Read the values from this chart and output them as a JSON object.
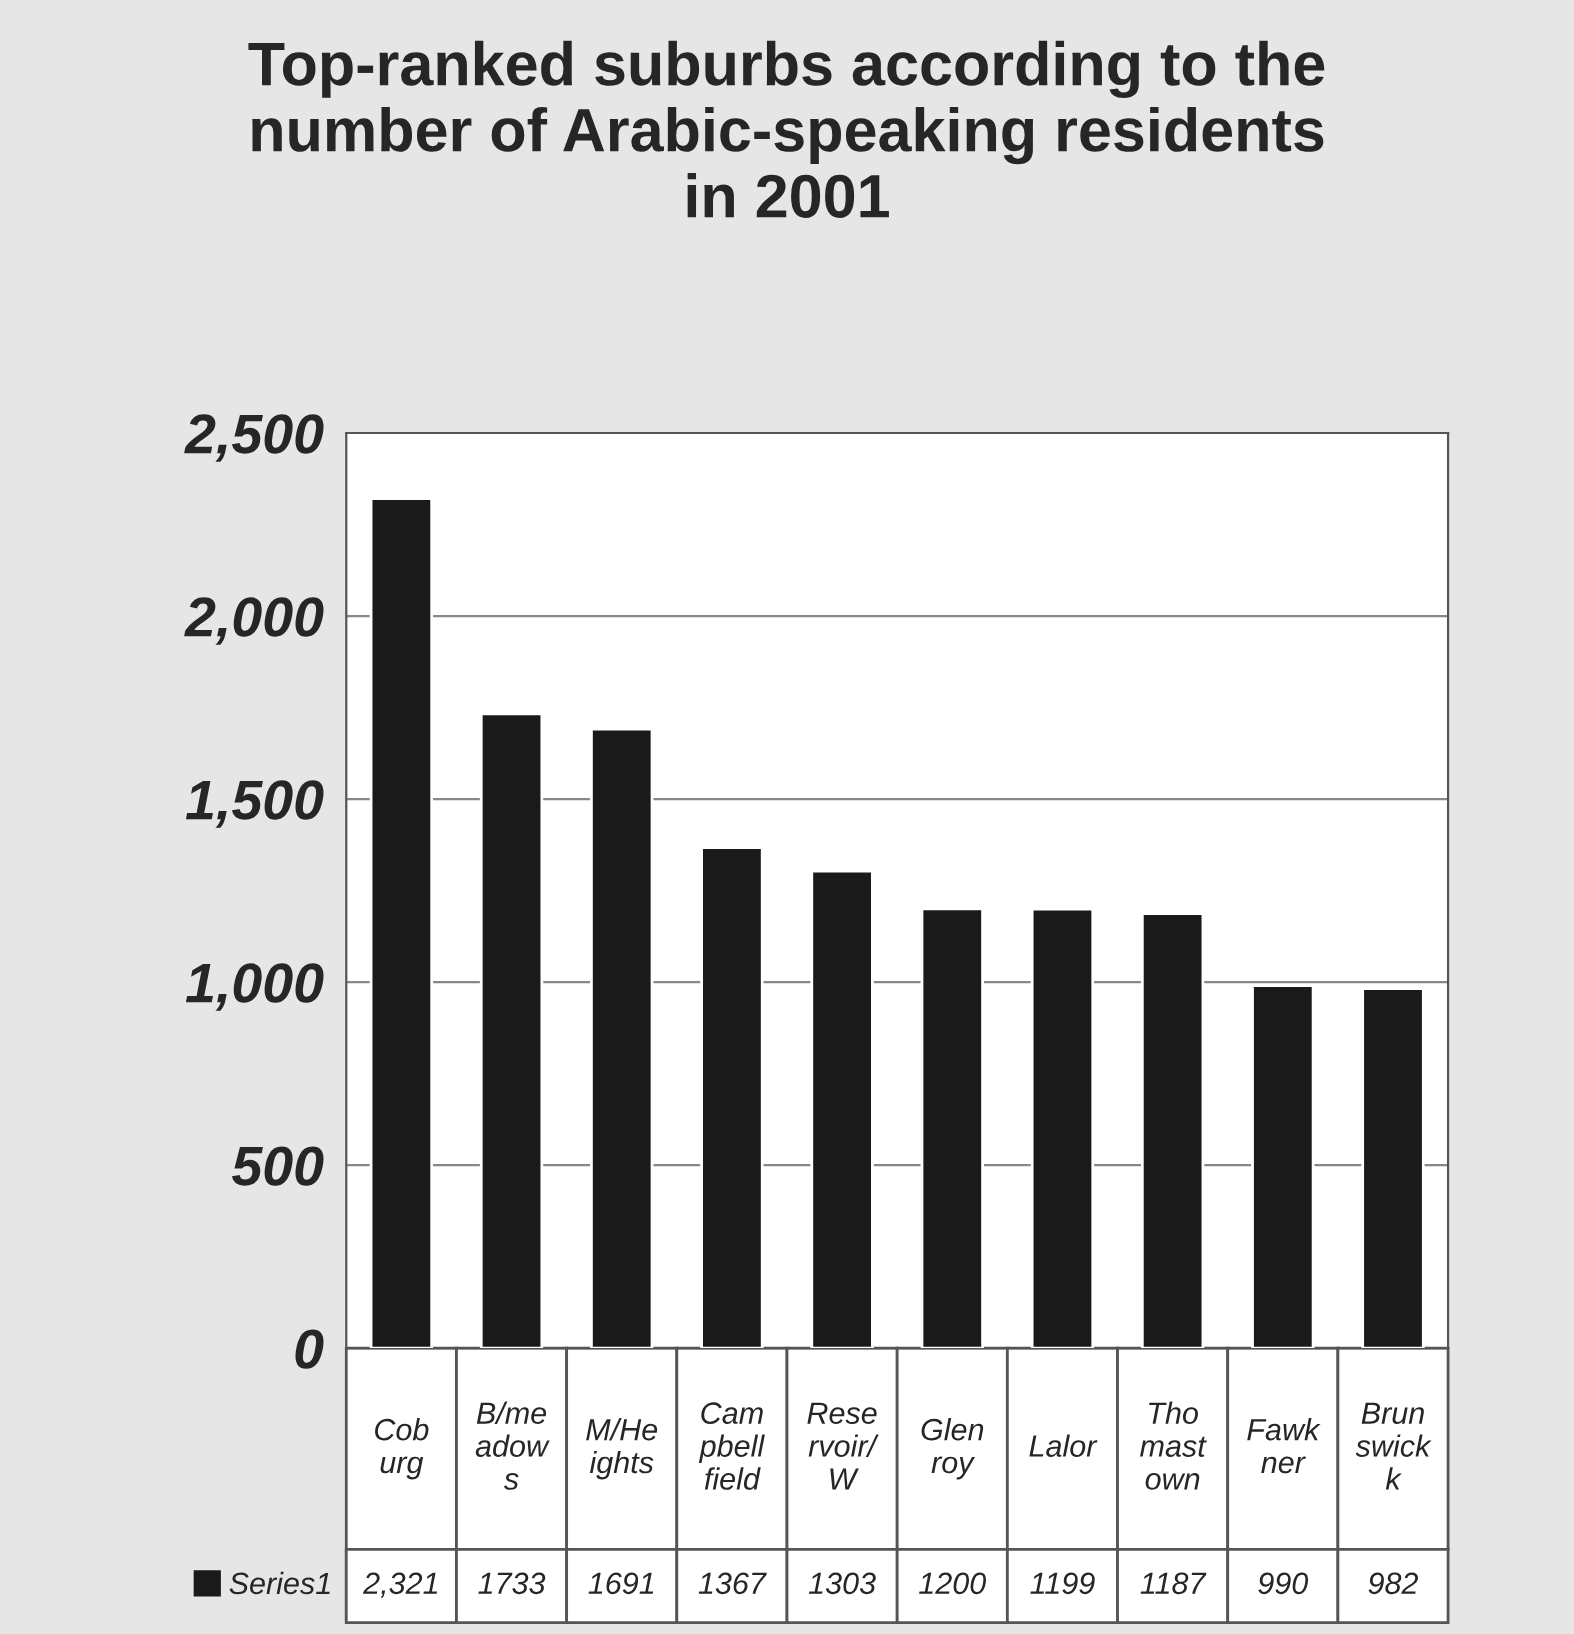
{
  "chart_data": {
    "type": "bar",
    "title": "Top-ranked suburbs according to the\nnumber of Arabic-speaking residents\nin 2001",
    "categories": [
      "Cob\nurg",
      "B/me\nadow\ns",
      "M/He\nights",
      "Cam\npbell\nfield",
      "Rese\nrvoir/\nW",
      "Glen\nroy",
      "Lalor",
      "Tho\nmast\nown",
      "Fawk\nner",
      "Brun\nswick\nk"
    ],
    "series": [
      {
        "name": "Series1",
        "color": "#1a1a1a",
        "values": [
          2321,
          1733,
          1691,
          1367,
          1303,
          1200,
          1199,
          1187,
          990,
          982
        ],
        "value_labels": [
          "2,321",
          "1733",
          "1691",
          "1367",
          "1303",
          "1200",
          "1199",
          "1187",
          "990",
          "982"
        ]
      }
    ],
    "ylim": [
      0,
      2500
    ],
    "yticks": [
      0,
      {
        "value": 500,
        "label": "500"
      },
      {
        "value": 1000,
        "label": "1,000"
      },
      {
        "value": 1500,
        "label": "1,500"
      },
      {
        "value": 2000,
        "label": "2,000"
      },
      {
        "value": 2500,
        "label": "2,500"
      }
    ],
    "grid": "y"
  }
}
